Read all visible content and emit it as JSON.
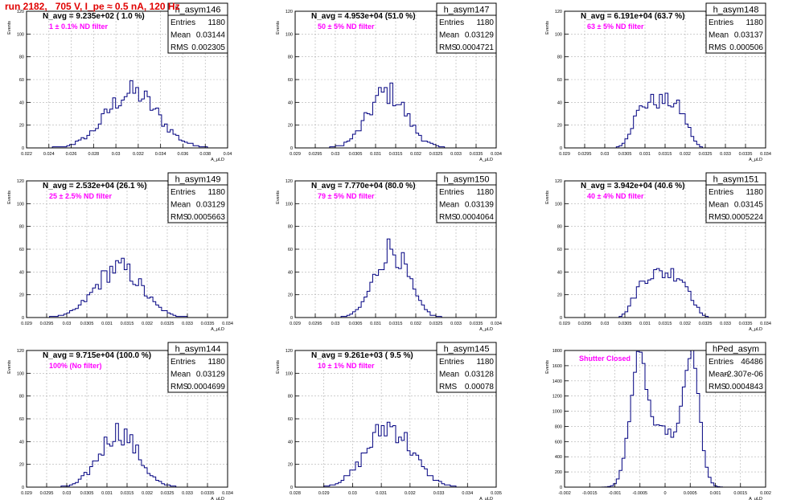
{
  "run_title": "run 2182,   705 V, I_pe ≈ 0.5 nA, 120 Hz",
  "colors": {
    "hist": "#000080",
    "annotation": "#ff00ff",
    "title": "#e00000",
    "grid": "#b0b0b0",
    "frame": "#000000"
  },
  "stat_labels": [
    "Entries",
    "Mean",
    "RMS"
  ],
  "chart_data": [
    {
      "type": "histogram",
      "title": "h_asym146",
      "xlabel": "A_μLD",
      "ylabel": "Events",
      "xlim": [
        0.022,
        0.04
      ],
      "ylim": [
        0,
        120
      ],
      "xticks": [
        "0.022",
        "0.024",
        "0.026",
        "0.028",
        "0.03",
        "0.032",
        "0.034",
        "0.036",
        "0.038",
        "0.04"
      ],
      "yticks": [
        "0",
        "20",
        "40",
        "60",
        "80",
        "100",
        "120"
      ],
      "navg": "N_avg = 9.235e+02 ( 1.0 %)",
      "filter": "1 ± 0.1% ND filter",
      "stats": [
        "1180",
        "0.03144",
        "0.002305"
      ],
      "mean": 0.03144,
      "rms": 0.002305,
      "peak": 50,
      "entries": 1180,
      "shape": "gauss",
      "grid": true
    },
    {
      "type": "histogram",
      "title": "h_asym147",
      "xlabel": "A_μLD",
      "ylabel": "Events",
      "xlim": [
        0.029,
        0.034
      ],
      "ylim": [
        0,
        120
      ],
      "xticks": [
        "0.029",
        "0.0295",
        "0.03",
        "0.0305",
        "0.031",
        "0.0315",
        "0.032",
        "0.0325",
        "0.033",
        "0.0335",
        "0.034"
      ],
      "yticks": [
        "0",
        "20",
        "40",
        "60",
        "80",
        "100",
        "120"
      ],
      "navg": "N_avg = 4.953e+04 (51.0 %)",
      "filter": "50 ± 5% ND filter",
      "stats": [
        "1180",
        "0.03129",
        "0.0004721"
      ],
      "mean": 0.03129,
      "rms": 0.0004721,
      "peak": 50,
      "entries": 1180,
      "shape": "gauss",
      "grid": true
    },
    {
      "type": "histogram",
      "title": "h_asym148",
      "xlabel": "A_μLD",
      "ylabel": "Events",
      "xlim": [
        0.029,
        0.034
      ],
      "ylim": [
        0,
        120
      ],
      "xticks": [
        "0.029",
        "0.0295",
        "0.03",
        "0.0305",
        "0.031",
        "0.0315",
        "0.032",
        "0.0325",
        "0.033",
        "0.0335",
        "0.034"
      ],
      "yticks": [
        "0",
        "20",
        "40",
        "60",
        "80",
        "100",
        "120"
      ],
      "navg": "N_avg = 6.191e+04 (63.7 %)",
      "filter": "63 ± 5% ND filter",
      "stats": [
        "1180",
        "0.03137",
        "0.000506"
      ],
      "mean": 0.03137,
      "rms": 0.000506,
      "peak": 42,
      "entries": 1180,
      "shape": "flat",
      "grid": true
    },
    {
      "type": "histogram",
      "title": "h_asym149",
      "xlabel": "A_μLD",
      "ylabel": "Events",
      "xlim": [
        0.029,
        0.034
      ],
      "ylim": [
        0,
        120
      ],
      "xticks": [
        "0.029",
        "0.0295",
        "0.03",
        "0.0305",
        "0.031",
        "0.0315",
        "0.032",
        "0.0325",
        "0.033",
        "0.0335",
        "0.034"
      ],
      "yticks": [
        "0",
        "20",
        "40",
        "60",
        "80",
        "100",
        "120"
      ],
      "navg": "N_avg = 2.532e+04 (26.1 %)",
      "filter": "25 ± 2.5% ND filter",
      "stats": [
        "1180",
        "0.03129",
        "0.0005663"
      ],
      "mean": 0.03129,
      "rms": 0.0005663,
      "peak": 45,
      "entries": 1180,
      "shape": "gauss",
      "grid": true
    },
    {
      "type": "histogram",
      "title": "h_asym150",
      "xlabel": "A_μLD",
      "ylabel": "Events",
      "xlim": [
        0.029,
        0.034
      ],
      "ylim": [
        0,
        120
      ],
      "xticks": [
        "0.029",
        "0.0295",
        "0.03",
        "0.0305",
        "0.031",
        "0.0315",
        "0.032",
        "0.0325",
        "0.033",
        "0.0335",
        "0.034"
      ],
      "yticks": [
        "0",
        "20",
        "40",
        "60",
        "80",
        "100",
        "120"
      ],
      "navg": "N_avg = 7.770e+04 (80.0 %)",
      "filter": "79 ± 5% ND filter",
      "stats": [
        "1180",
        "0.03139",
        "0.0004064"
      ],
      "mean": 0.03139,
      "rms": 0.0004064,
      "peak": 62,
      "entries": 1180,
      "shape": "gauss",
      "grid": true
    },
    {
      "type": "histogram",
      "title": "h_asym151",
      "xlabel": "A_μLD",
      "ylabel": "Events",
      "xlim": [
        0.029,
        0.034
      ],
      "ylim": [
        0,
        120
      ],
      "xticks": [
        "0.029",
        "0.0295",
        "0.03",
        "0.0305",
        "0.031",
        "0.0315",
        "0.032",
        "0.0325",
        "0.033",
        "0.0335",
        "0.034"
      ],
      "yticks": [
        "0",
        "20",
        "40",
        "60",
        "80",
        "100",
        "120"
      ],
      "navg": "N_avg = 3.942e+04 (40.6 %)",
      "filter": "40 ± 4% ND filter",
      "stats": [
        "1180",
        "0.03145",
        "0.0005224"
      ],
      "mean": 0.03145,
      "rms": 0.0005224,
      "peak": 40,
      "entries": 1180,
      "shape": "flat",
      "grid": true
    },
    {
      "type": "histogram",
      "title": "h_asym144",
      "xlabel": "A_μLD",
      "ylabel": "Events",
      "xlim": [
        0.029,
        0.034
      ],
      "ylim": [
        0,
        120
      ],
      "xticks": [
        "0.029",
        "0.0295",
        "0.03",
        "0.0305",
        "0.031",
        "0.0315",
        "0.032",
        "0.0325",
        "0.033",
        "0.0335",
        "0.034"
      ],
      "yticks": [
        "0",
        "20",
        "40",
        "60",
        "80",
        "100",
        "120"
      ],
      "navg": "N_avg = 9.715e+04 (100.0 %)",
      "filter": "100% (No filter)",
      "stats": [
        "1180",
        "0.03129",
        "0.0004699"
      ],
      "mean": 0.03129,
      "rms": 0.0004699,
      "peak": 50,
      "entries": 1180,
      "shape": "gauss",
      "grid": true
    },
    {
      "type": "histogram",
      "title": "h_asym145",
      "xlabel": "A_μLD",
      "ylabel": "Events",
      "xlim": [
        0.028,
        0.035
      ],
      "ylim": [
        0,
        120
      ],
      "xticks": [
        "0.028",
        "0.029",
        "0.03",
        "0.031",
        "0.032",
        "0.033",
        "0.034",
        "0.035"
      ],
      "yticks": [
        "0",
        "20",
        "40",
        "60",
        "80",
        "100",
        "120"
      ],
      "navg": "N_avg = 9.261e+03 ( 9.5 %)",
      "filter": "10 ± 1% ND filter",
      "stats": [
        "1180",
        "0.03128",
        "0.00078"
      ],
      "mean": 0.03128,
      "rms": 0.00078,
      "peak": 55,
      "entries": 1180,
      "shape": "gauss",
      "grid": true
    },
    {
      "type": "histogram",
      "title": "hPed_asym",
      "xlabel": "A_μLD",
      "ylabel": "Events",
      "xlim": [
        -0.002,
        0.002
      ],
      "ylim": [
        0,
        1800
      ],
      "xticks": [
        "-0.002",
        "-0.0015",
        "-0.001",
        "-0.0005",
        "0",
        "0.0005",
        "0.001",
        "0.0015",
        "0.002"
      ],
      "yticks": [
        "0",
        "200",
        "400",
        "600",
        "800",
        "1000",
        "1200",
        "1400",
        "1600",
        "1800"
      ],
      "navg": "",
      "filter": "Shutter Closed",
      "stats": [
        "46486",
        "-2.307e-06",
        "0.0004843"
      ],
      "mean": -2.307e-06,
      "rms": 0.0004843,
      "peak": 1720,
      "entries": 46486,
      "shape": "bimodal",
      "grid": true
    }
  ]
}
